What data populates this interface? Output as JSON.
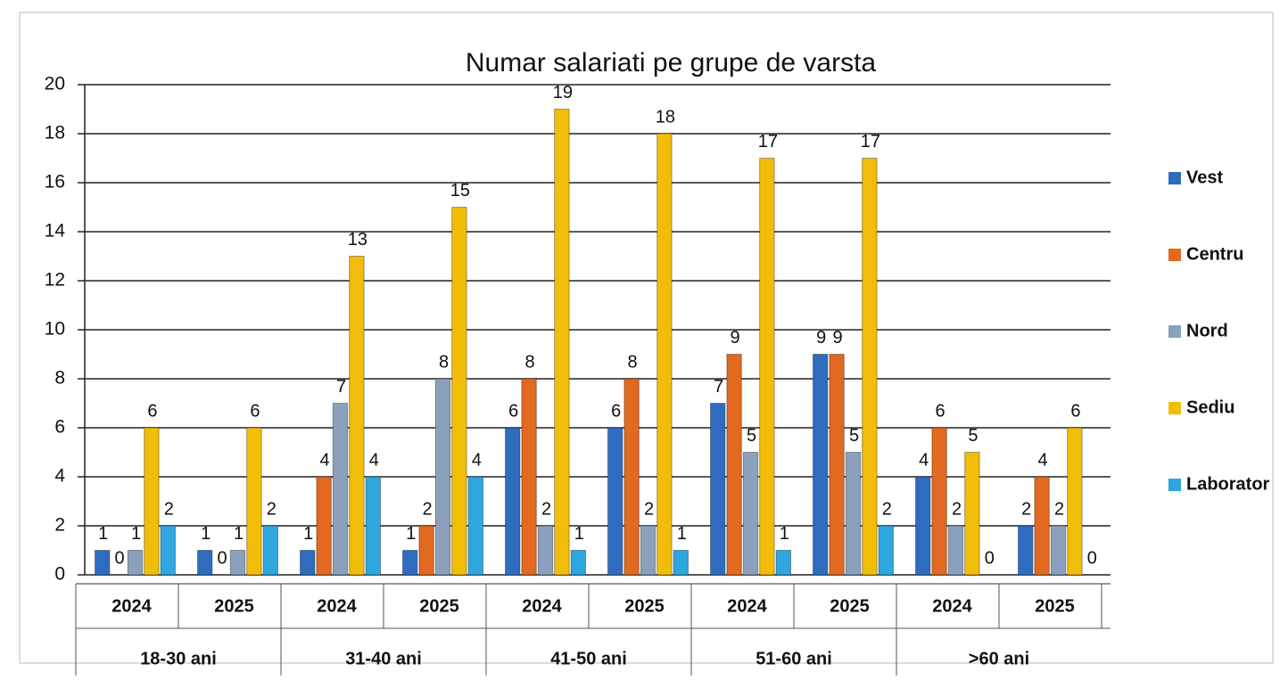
{
  "chart_data": {
    "type": "bar",
    "title": "Numar salariati pe grupe de varsta",
    "categories": [
      "2024",
      "2025",
      "2024",
      "2025",
      "2024",
      "2025",
      "2024",
      "2025",
      "2024",
      "2025"
    ],
    "groups": [
      "18-30 ani",
      "31-40 ani",
      "41-50 ani",
      "51-60 ani",
      ">60 ani"
    ],
    "series": [
      {
        "name": "Vest",
        "color": "#2e6cc0",
        "values": [
          1,
          1,
          1,
          1,
          6,
          6,
          7,
          9,
          4,
          2
        ]
      },
      {
        "name": "Centru",
        "color": "#e2691f",
        "values": [
          0,
          0,
          4,
          2,
          8,
          8,
          9,
          9,
          6,
          4
        ]
      },
      {
        "name": "Nord",
        "color": "#8aa0bc",
        "values": [
          1,
          1,
          7,
          8,
          2,
          2,
          5,
          5,
          2,
          2
        ]
      },
      {
        "name": "Sediu",
        "color": "#f2bd08",
        "values": [
          6,
          6,
          13,
          15,
          19,
          18,
          17,
          17,
          5,
          6
        ]
      },
      {
        "name": "Laborator",
        "color": "#2ea6df",
        "values": [
          2,
          2,
          4,
          4,
          1,
          1,
          1,
          2,
          0,
          0
        ]
      }
    ],
    "ylim": [
      0,
      20
    ],
    "yticks": [
      0,
      2,
      4,
      6,
      8,
      10,
      12,
      14,
      16,
      18,
      20
    ],
    "grid": true,
    "legend": "right"
  }
}
